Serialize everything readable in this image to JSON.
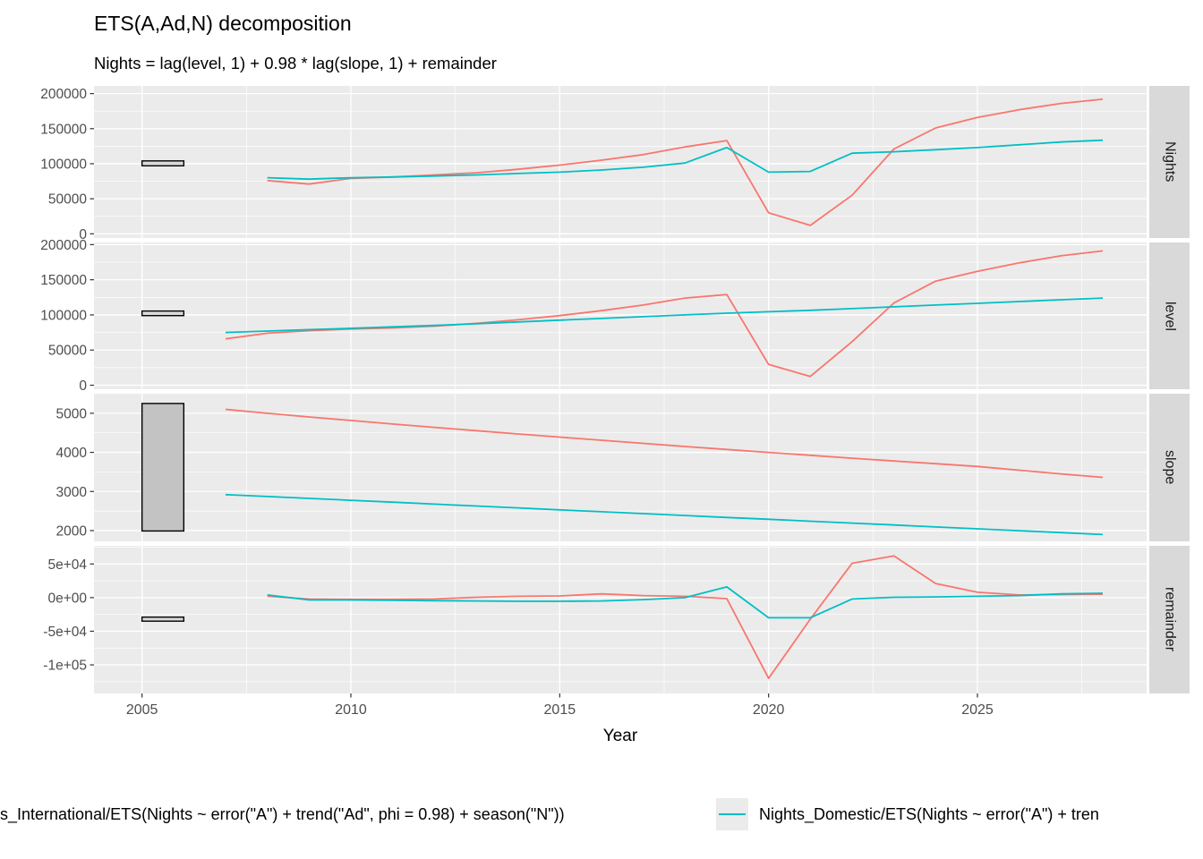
{
  "title": "ETS(A,Ad,N) decomposition",
  "subtitle": "Nights = lag(level, 1) + 0.98 * lag(slope, 1) + remainder",
  "x_axis": {
    "label": "Year",
    "ticks": [
      2005,
      2010,
      2015,
      2020,
      2025
    ],
    "minor_ticks": [
      2007.5,
      2012.5,
      2017.5,
      2022.5,
      2027.5
    ],
    "range": [
      2003.85,
      2029.05
    ]
  },
  "colors": {
    "international": "#F8766D",
    "domestic": "#00BFC4",
    "panel_bg": "#EBEBEB",
    "strip_bg": "#D9D9D9",
    "grid": "#FFFFFF",
    "axis_text": "#4D4D4D",
    "tick_mark": "#333333"
  },
  "legend": {
    "items": [
      {
        "label_visible": "s_International/ETS(Nights ~ error(\"A\") + trend(\"Ad\", phi = 0.98) + season(\"N\"))",
        "color": "#F8766D",
        "key_visible": false
      },
      {
        "label_visible": "Nights_Domestic/ETS(Nights ~ error(\"A\") + tren",
        "color": "#00BFC4",
        "key_visible": true
      }
    ]
  },
  "chart_data": [
    {
      "type": "line",
      "panel": "Nights",
      "ylim": [
        -6000,
        211000
      ],
      "yticks": {
        "values": [
          0,
          50000,
          100000,
          150000,
          200000
        ],
        "labels": [
          "0",
          "50000",
          "100000",
          "150000",
          "200000"
        ]
      },
      "minor": [
        25000,
        75000,
        125000,
        175000
      ],
      "scale_bar": {
        "x": [
          2005,
          2006
        ],
        "y": [
          97000,
          104000
        ],
        "fill": "#D9D9D9"
      },
      "series": [
        {
          "name": "Nights_International",
          "color": "#F8766D",
          "x": [
            2008,
            2009,
            2010,
            2011,
            2012,
            2013,
            2014,
            2015,
            2016,
            2017,
            2018,
            2019,
            2020,
            2021,
            2022,
            2023,
            2024,
            2025,
            2026,
            2027,
            2028
          ],
          "y": [
            76000,
            71000,
            79000,
            81000,
            84000,
            87000,
            92000,
            98000,
            105000,
            113000,
            124000,
            133000,
            30000,
            12000,
            55000,
            121000,
            151000,
            166000,
            177000,
            186000,
            192000
          ]
        },
        {
          "name": "Nights_Domestic",
          "color": "#00BFC4",
          "x": [
            2008,
            2009,
            2010,
            2011,
            2012,
            2013,
            2014,
            2015,
            2016,
            2017,
            2018,
            2019,
            2020,
            2021,
            2022,
            2023,
            2024,
            2025,
            2026,
            2027,
            2028
          ],
          "y": [
            80000,
            78000,
            80000,
            81000,
            82500,
            84000,
            86000,
            88000,
            91000,
            95000,
            101000,
            123000,
            88000,
            89000,
            115000,
            117000,
            120000,
            123000,
            127000,
            131000,
            133500
          ]
        }
      ]
    },
    {
      "type": "line",
      "panel": "level",
      "ylim": [
        -5700,
        203000
      ],
      "yticks": {
        "values": [
          0,
          50000,
          100000,
          150000,
          200000
        ],
        "labels": [
          "0",
          "50000",
          "100000",
          "150000",
          "200000"
        ]
      },
      "minor": [
        25000,
        75000,
        125000,
        175000
      ],
      "scale_bar": {
        "x": [
          2005,
          2006
        ],
        "y": [
          99000,
          105500
        ],
        "fill": "#D9D9D9"
      },
      "series": [
        {
          "name": "Nights_International",
          "color": "#F8766D",
          "x": [
            2007,
            2008,
            2009,
            2010,
            2011,
            2012,
            2013,
            2014,
            2015,
            2016,
            2017,
            2018,
            2019,
            2020,
            2021,
            2022,
            2023,
            2024,
            2025,
            2026,
            2027,
            2028
          ],
          "y": [
            66000,
            74000,
            77500,
            80000,
            81500,
            84000,
            88000,
            93000,
            99000,
            106000,
            114000,
            124000,
            129000,
            29500,
            12500,
            62000,
            117000,
            148000,
            162000,
            174000,
            184000,
            191000
          ]
        },
        {
          "name": "Nights_Domestic",
          "color": "#00BFC4",
          "x": [
            2007,
            2008,
            2009,
            2010,
            2011,
            2012,
            2013,
            2014,
            2015,
            2016,
            2017,
            2018,
            2019,
            2020,
            2021,
            2022,
            2023,
            2024,
            2025,
            2026,
            2027,
            2028
          ],
          "y": [
            75000,
            77000,
            79000,
            81000,
            83000,
            85000,
            87500,
            90000,
            92500,
            95000,
            97500,
            100000,
            102500,
            104500,
            106500,
            109000,
            111500,
            114000,
            116500,
            119000,
            121500,
            124000
          ]
        }
      ]
    },
    {
      "type": "line",
      "panel": "slope",
      "ylim": [
        1725,
        5500
      ],
      "yticks": {
        "values": [
          2000,
          3000,
          4000,
          5000
        ],
        "labels": [
          "2000",
          "3000",
          "4000",
          "5000"
        ]
      },
      "minor": [
        2500,
        3500,
        4500
      ],
      "scale_bar": {
        "x": [
          2005,
          2006
        ],
        "y": [
          1990,
          5250
        ],
        "fill": "#C3C3C3"
      },
      "series": [
        {
          "name": "Nights_International",
          "color": "#F8766D",
          "x": [
            2007,
            2008,
            2009,
            2010,
            2011,
            2012,
            2013,
            2014,
            2015,
            2016,
            2017,
            2018,
            2019,
            2020,
            2021,
            2022,
            2023,
            2024,
            2025,
            2026,
            2027,
            2028
          ],
          "y": [
            5100,
            5000,
            4905,
            4815,
            4725,
            4640,
            4555,
            4470,
            4390,
            4310,
            4230,
            4150,
            4075,
            4000,
            3925,
            3850,
            3780,
            3710,
            3640,
            3545,
            3450,
            3360
          ]
        },
        {
          "name": "Nights_Domestic",
          "color": "#00BFC4",
          "x": [
            2007,
            2008,
            2009,
            2010,
            2011,
            2012,
            2013,
            2014,
            2015,
            2016,
            2017,
            2018,
            2019,
            2020,
            2021,
            2022,
            2023,
            2024,
            2025,
            2026,
            2027,
            2028
          ],
          "y": [
            2920,
            2871,
            2823,
            2774,
            2726,
            2677,
            2629,
            2580,
            2531,
            2483,
            2434,
            2386,
            2337,
            2289,
            2240,
            2191,
            2143,
            2094,
            2046,
            1997,
            1949,
            1900
          ]
        }
      ]
    },
    {
      "type": "line",
      "panel": "remainder",
      "ylim": [
        -142500,
        77000
      ],
      "yticks": {
        "values": [
          50000,
          0,
          -50000,
          -100000
        ],
        "labels": [
          "5e+04",
          "0e+00",
          "-5e+04",
          "-1e+05"
        ]
      },
      "minor": [
        75000,
        25000,
        -25000,
        -75000,
        -125000
      ],
      "scale_bar": {
        "x": [
          2005,
          2006
        ],
        "y": [
          -35000,
          -29000
        ],
        "fill": "#D9D9D9"
      },
      "series": [
        {
          "name": "Nights_International",
          "color": "#F8766D",
          "x": [
            2008,
            2009,
            2010,
            2011,
            2012,
            2013,
            2014,
            2015,
            2016,
            2017,
            2018,
            2019,
            2020,
            2021,
            2022,
            2023,
            2024,
            2025,
            2026,
            2027,
            2028
          ],
          "y": [
            2000,
            -2000,
            -2500,
            -2500,
            -2000,
            500,
            2000,
            2500,
            5500,
            3000,
            2000,
            -1500,
            -120000,
            -32000,
            51000,
            62000,
            21000,
            8000,
            4000,
            4500,
            5000
          ]
        },
        {
          "name": "Nights_Domestic",
          "color": "#00BFC4",
          "x": [
            2008,
            2009,
            2010,
            2011,
            2012,
            2013,
            2014,
            2015,
            2016,
            2017,
            2018,
            2019,
            2020,
            2021,
            2022,
            2023,
            2024,
            2025,
            2026,
            2027,
            2028
          ],
          "y": [
            4000,
            -3500,
            -3500,
            -4000,
            -4500,
            -5000,
            -5500,
            -5500,
            -5000,
            -3000,
            0,
            16000,
            -30000,
            -30000,
            -2000,
            500,
            1000,
            2000,
            3000,
            5500,
            6500
          ]
        }
      ]
    }
  ]
}
